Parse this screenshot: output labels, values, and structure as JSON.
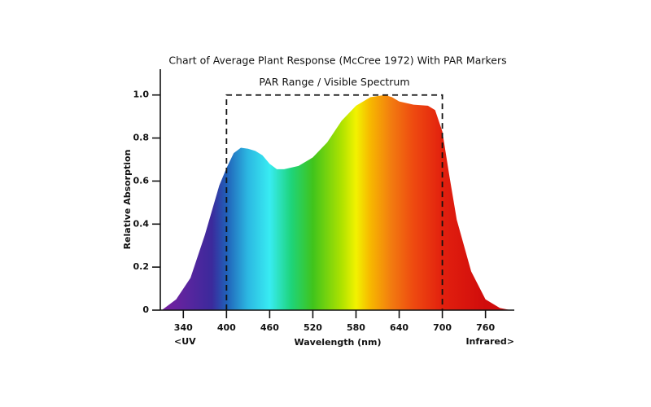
{
  "chart_data": {
    "type": "area",
    "title": "Chart of Average Plant Response (McCree 1972) With PAR Markers",
    "x_label": "Wavelength (nm)",
    "y_label": "Relative Absorption",
    "annotations": {
      "uv": "<UV",
      "infrared": "Infrared>",
      "par": "PAR Range / Visible Spectrum"
    },
    "par_range": [
      400,
      700
    ],
    "par_level": 1,
    "x": [
      310,
      330,
      350,
      370,
      390,
      400,
      410,
      420,
      430,
      440,
      450,
      460,
      470,
      480,
      500,
      520,
      540,
      560,
      580,
      600,
      620,
      630,
      640,
      660,
      680,
      690,
      700,
      710,
      720,
      740,
      760,
      780,
      795
    ],
    "values": [
      0,
      0.05,
      0.15,
      0.35,
      0.58,
      0.66,
      0.73,
      0.755,
      0.75,
      0.74,
      0.72,
      0.68,
      0.655,
      0.655,
      0.67,
      0.71,
      0.78,
      0.88,
      0.95,
      0.99,
      1.0,
      0.99,
      0.97,
      0.955,
      0.95,
      0.93,
      0.83,
      0.62,
      0.42,
      0.18,
      0.05,
      0.01,
      0
    ],
    "xlim": [
      308,
      800
    ],
    "xticks": [
      340,
      400,
      460,
      520,
      580,
      640,
      700,
      760
    ],
    "ylim": [
      0,
      1.12
    ],
    "yticks": [
      0,
      0.2,
      0.4,
      0.6,
      0.8,
      {
        "value": 1,
        "label": "1.0"
      }
    ]
  }
}
